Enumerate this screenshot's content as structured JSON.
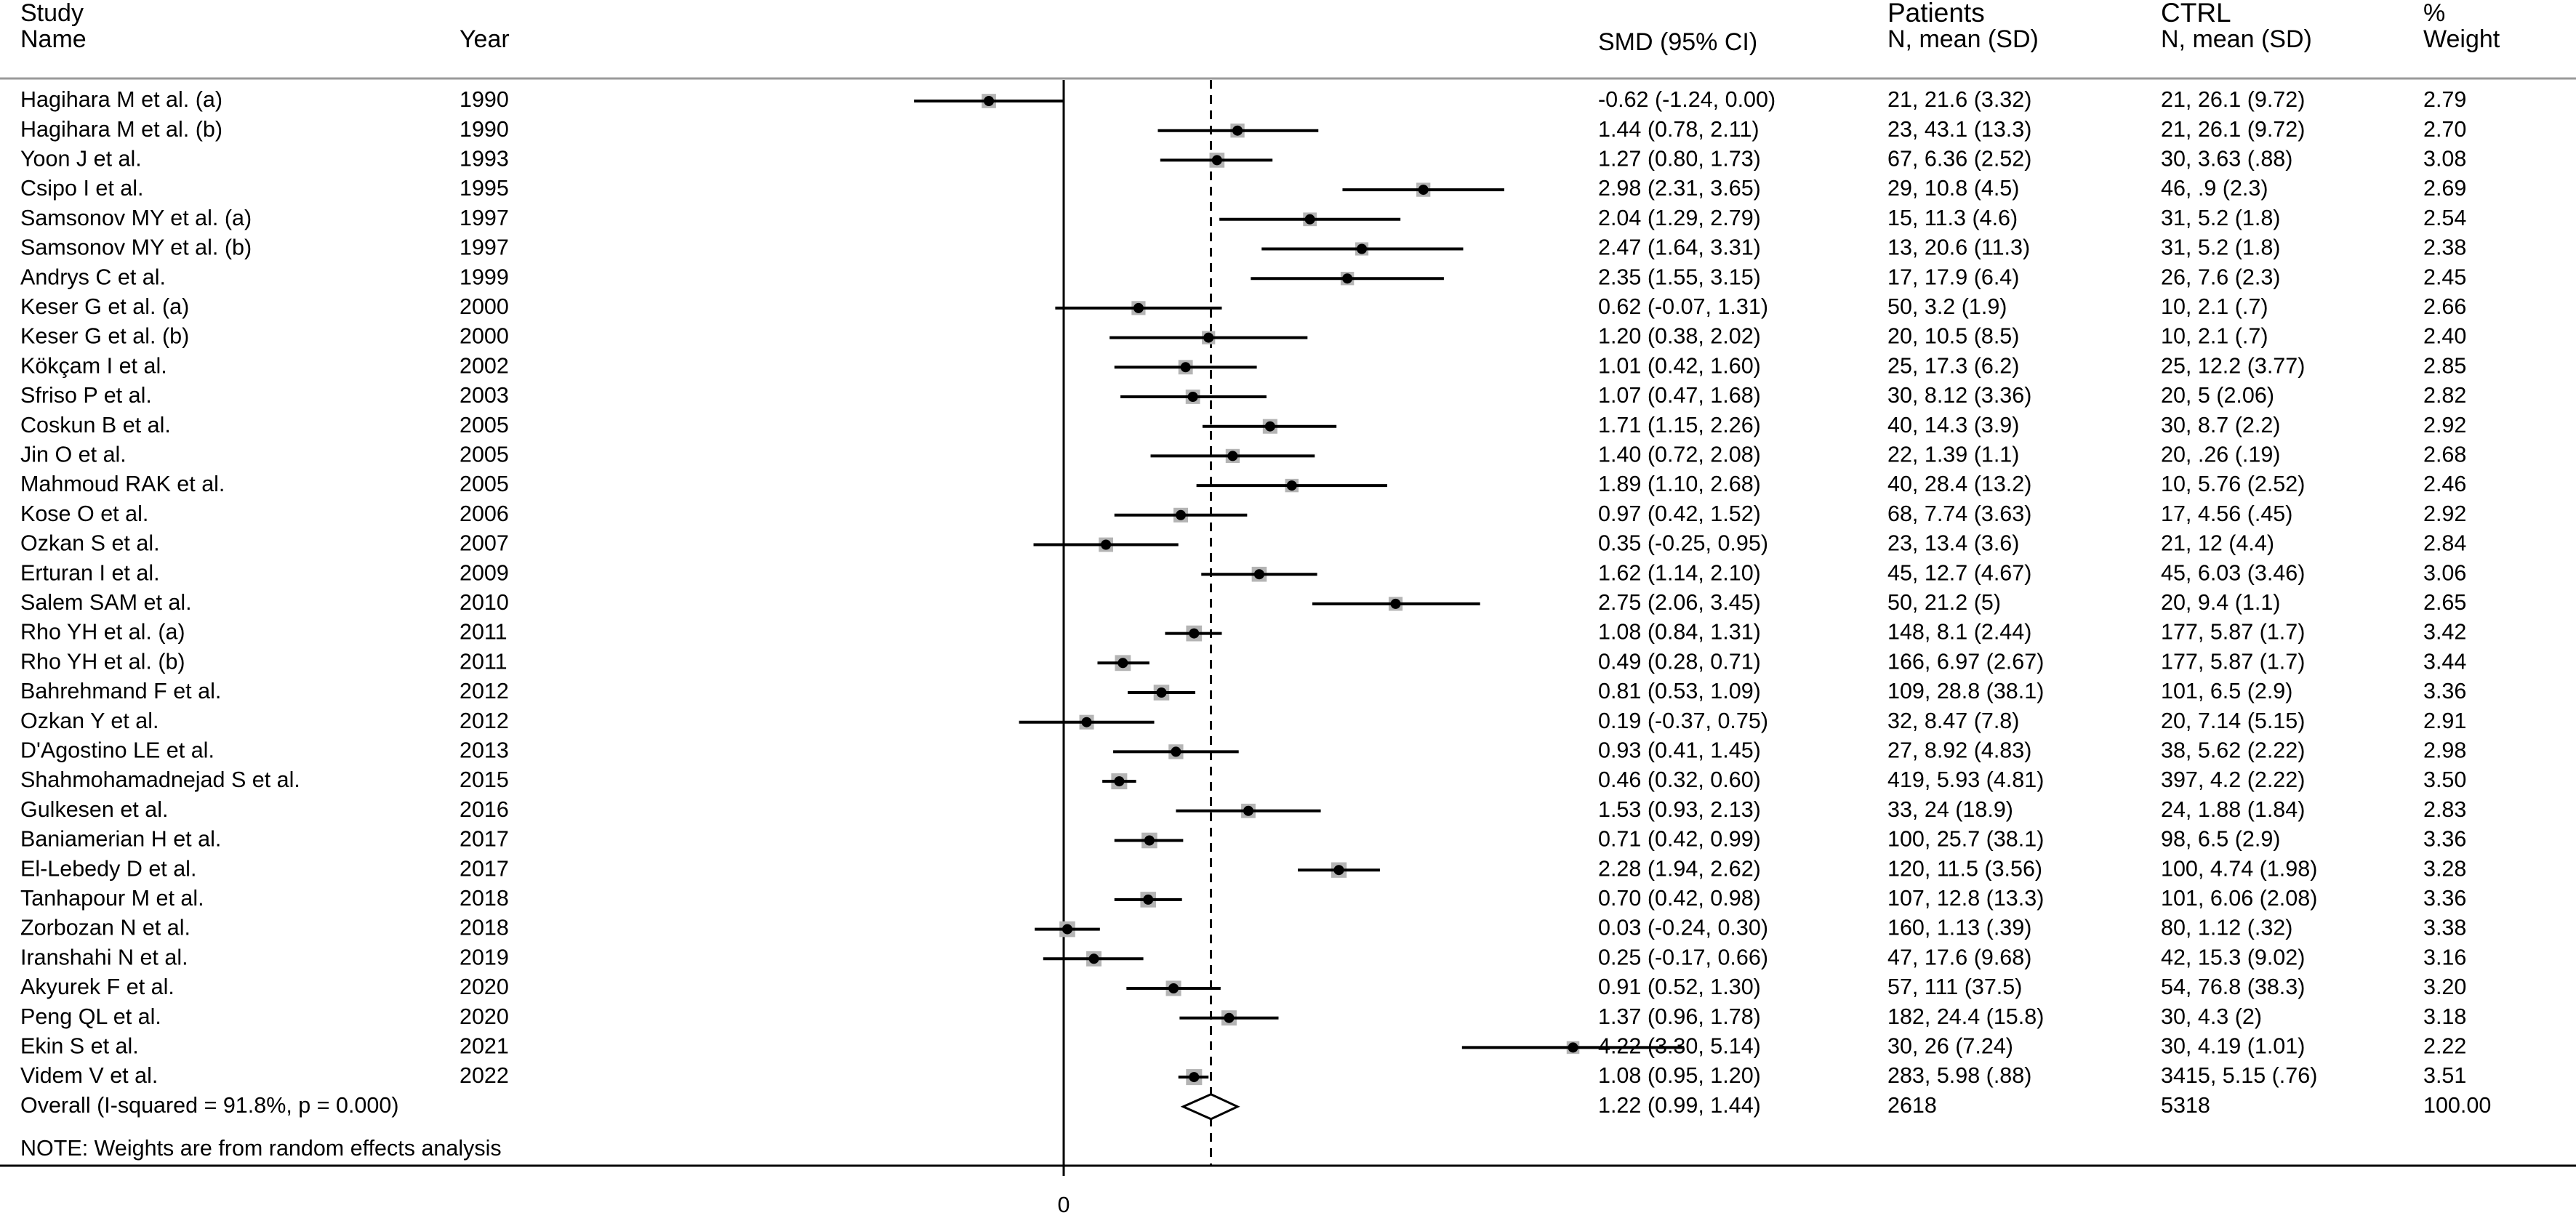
{
  "header": {
    "study_line1": "Study",
    "study_line2": "Name",
    "year": "Year",
    "smd": "SMD (95% CI)",
    "patients_line1": "Patients",
    "patients_line2": "N, mean (SD)",
    "ctrl_line1": "CTRL",
    "ctrl_line2": "N, mean (SD)",
    "weight_line1": "%",
    "weight_line2": "Weight"
  },
  "note": "NOTE: Weights are from random effects analysis",
  "chart_data": {
    "type": "forest",
    "xlabel": "",
    "x_ticks": [
      0
    ],
    "xlim": [
      -1.6,
      4.9
    ],
    "reference_line": 0,
    "overall_line": 1.22,
    "studies": [
      {
        "name": "Hagihara M et al. (a)",
        "year": "1990",
        "smd": -0.62,
        "lo": -1.24,
        "hi": 0.0,
        "ci_text": "-0.62 (-1.24, 0.00)",
        "patients": "21, 21.6 (3.32)",
        "ctrl": "21, 26.1 (9.72)",
        "weight": 2.79,
        "weight_text": "2.79"
      },
      {
        "name": "Hagihara M et al. (b)",
        "year": "1990",
        "smd": 1.44,
        "lo": 0.78,
        "hi": 2.11,
        "ci_text": "1.44 (0.78, 2.11)",
        "patients": "23, 43.1 (13.3)",
        "ctrl": "21, 26.1 (9.72)",
        "weight": 2.7,
        "weight_text": "2.70"
      },
      {
        "name": "Yoon J et al.",
        "year": "1993",
        "smd": 1.27,
        "lo": 0.8,
        "hi": 1.73,
        "ci_text": "1.27 (0.80, 1.73)",
        "patients": "67, 6.36 (2.52)",
        "ctrl": "30, 3.63 (.88)",
        "weight": 3.08,
        "weight_text": "3.08"
      },
      {
        "name": "Csipo I et al.",
        "year": "1995",
        "smd": 2.98,
        "lo": 2.31,
        "hi": 3.65,
        "ci_text": "2.98 (2.31, 3.65)",
        "patients": "29, 10.8 (4.5)",
        "ctrl": "46, .9 (2.3)",
        "weight": 2.69,
        "weight_text": "2.69"
      },
      {
        "name": "Samsonov MY et al. (a)",
        "year": "1997",
        "smd": 2.04,
        "lo": 1.29,
        "hi": 2.79,
        "ci_text": "2.04 (1.29, 2.79)",
        "patients": "15, 11.3 (4.6)",
        "ctrl": "31, 5.2 (1.8)",
        "weight": 2.54,
        "weight_text": "2.54"
      },
      {
        "name": "Samsonov MY et al. (b)",
        "year": "1997",
        "smd": 2.47,
        "lo": 1.64,
        "hi": 3.31,
        "ci_text": "2.47 (1.64, 3.31)",
        "patients": "13, 20.6 (11.3)",
        "ctrl": "31, 5.2 (1.8)",
        "weight": 2.38,
        "weight_text": "2.38"
      },
      {
        "name": "Andrys C et al.",
        "year": "1999",
        "smd": 2.35,
        "lo": 1.55,
        "hi": 3.15,
        "ci_text": "2.35 (1.55, 3.15)",
        "patients": "17, 17.9 (6.4)",
        "ctrl": "26, 7.6 (2.3)",
        "weight": 2.45,
        "weight_text": "2.45"
      },
      {
        "name": "Keser G et al. (a)",
        "year": "2000",
        "smd": 0.62,
        "lo": -0.07,
        "hi": 1.31,
        "ci_text": "0.62 (-0.07, 1.31)",
        "patients": "50, 3.2 (1.9)",
        "ctrl": "10, 2.1 (.7)",
        "weight": 2.66,
        "weight_text": "2.66"
      },
      {
        "name": "Keser G et al. (b)",
        "year": "2000",
        "smd": 1.2,
        "lo": 0.38,
        "hi": 2.02,
        "ci_text": "1.20 (0.38, 2.02)",
        "patients": "20, 10.5 (8.5)",
        "ctrl": "10, 2.1 (.7)",
        "weight": 2.4,
        "weight_text": "2.40"
      },
      {
        "name": "Kökçam I et al.",
        "year": "2002",
        "smd": 1.01,
        "lo": 0.42,
        "hi": 1.6,
        "ci_text": "1.01 (0.42, 1.60)",
        "patients": "25, 17.3 (6.2)",
        "ctrl": "25, 12.2 (3.77)",
        "weight": 2.85,
        "weight_text": "2.85"
      },
      {
        "name": "Sfriso P et al.",
        "year": "2003",
        "smd": 1.07,
        "lo": 0.47,
        "hi": 1.68,
        "ci_text": "1.07 (0.47, 1.68)",
        "patients": "30, 8.12 (3.36)",
        "ctrl": "20, 5 (2.06)",
        "weight": 2.82,
        "weight_text": "2.82"
      },
      {
        "name": "Coskun B et al.",
        "year": "2005",
        "smd": 1.71,
        "lo": 1.15,
        "hi": 2.26,
        "ci_text": "1.71 (1.15, 2.26)",
        "patients": "40, 14.3 (3.9)",
        "ctrl": "30, 8.7 (2.2)",
        "weight": 2.92,
        "weight_text": "2.92"
      },
      {
        "name": "Jin O et al.",
        "year": "2005",
        "smd": 1.4,
        "lo": 0.72,
        "hi": 2.08,
        "ci_text": "1.40 (0.72, 2.08)",
        "patients": "22, 1.39 (1.1)",
        "ctrl": "20, .26 (.19)",
        "weight": 2.68,
        "weight_text": "2.68"
      },
      {
        "name": "Mahmoud RAK et al.",
        "year": "2005",
        "smd": 1.89,
        "lo": 1.1,
        "hi": 2.68,
        "ci_text": "1.89 (1.10, 2.68)",
        "patients": "40, 28.4 (13.2)",
        "ctrl": "10, 5.76 (2.52)",
        "weight": 2.46,
        "weight_text": "2.46"
      },
      {
        "name": "Kose O et al.",
        "year": "2006",
        "smd": 0.97,
        "lo": 0.42,
        "hi": 1.52,
        "ci_text": "0.97 (0.42, 1.52)",
        "patients": "68, 7.74 (3.63)",
        "ctrl": "17, 4.56 (.45)",
        "weight": 2.92,
        "weight_text": "2.92"
      },
      {
        "name": "Ozkan  S et al.",
        "year": "2007",
        "smd": 0.35,
        "lo": -0.25,
        "hi": 0.95,
        "ci_text": "0.35 (-0.25, 0.95)",
        "patients": "23, 13.4 (3.6)",
        "ctrl": "21, 12 (4.4)",
        "weight": 2.84,
        "weight_text": "2.84"
      },
      {
        "name": "Erturan I et al.",
        "year": "2009",
        "smd": 1.62,
        "lo": 1.14,
        "hi": 2.1,
        "ci_text": "1.62 (1.14, 2.10)",
        "patients": "45, 12.7 (4.67)",
        "ctrl": "45, 6.03 (3.46)",
        "weight": 3.06,
        "weight_text": "3.06"
      },
      {
        "name": "Salem SAM et al.",
        "year": "2010",
        "smd": 2.75,
        "lo": 2.06,
        "hi": 3.45,
        "ci_text": "2.75 (2.06, 3.45)",
        "patients": "50, 21.2 (5)",
        "ctrl": "20, 9.4 (1.1)",
        "weight": 2.65,
        "weight_text": "2.65"
      },
      {
        "name": "Rho YH et al. (a)",
        "year": "2011",
        "smd": 1.08,
        "lo": 0.84,
        "hi": 1.31,
        "ci_text": "1.08 (0.84, 1.31)",
        "patients": "148, 8.1 (2.44)",
        "ctrl": "177, 5.87 (1.7)",
        "weight": 3.42,
        "weight_text": "3.42"
      },
      {
        "name": "Rho YH et al. (b)",
        "year": "2011",
        "smd": 0.49,
        "lo": 0.28,
        "hi": 0.71,
        "ci_text": "0.49 (0.28, 0.71)",
        "patients": "166, 6.97 (2.67)",
        "ctrl": "177, 5.87 (1.7)",
        "weight": 3.44,
        "weight_text": "3.44"
      },
      {
        "name": "Bahrehmand F et al.",
        "year": "2012",
        "smd": 0.81,
        "lo": 0.53,
        "hi": 1.09,
        "ci_text": "0.81 (0.53, 1.09)",
        "patients": "109, 28.8 (38.1)",
        "ctrl": "101, 6.5 (2.9)",
        "weight": 3.36,
        "weight_text": "3.36"
      },
      {
        "name": "Ozkan Y et al.",
        "year": "2012",
        "smd": 0.19,
        "lo": -0.37,
        "hi": 0.75,
        "ci_text": "0.19 (-0.37, 0.75)",
        "patients": "32, 8.47 (7.8)",
        "ctrl": "20, 7.14 (5.15)",
        "weight": 2.91,
        "weight_text": "2.91"
      },
      {
        "name": "D'Agostino LE et al.",
        "year": "2013",
        "smd": 0.93,
        "lo": 0.41,
        "hi": 1.45,
        "ci_text": "0.93 (0.41, 1.45)",
        "patients": "27, 8.92 (4.83)",
        "ctrl": "38, 5.62 (2.22)",
        "weight": 2.98,
        "weight_text": "2.98"
      },
      {
        "name": "Shahmohamadnejad S et al.",
        "year": "2015",
        "smd": 0.46,
        "lo": 0.32,
        "hi": 0.6,
        "ci_text": "0.46 (0.32, 0.60)",
        "patients": "419, 5.93 (4.81)",
        "ctrl": "397, 4.2 (2.22)",
        "weight": 3.5,
        "weight_text": "3.50"
      },
      {
        "name": "Gulkesen et al.",
        "year": "2016",
        "smd": 1.53,
        "lo": 0.93,
        "hi": 2.13,
        "ci_text": "1.53 (0.93, 2.13)",
        "patients": "33, 24 (18.9)",
        "ctrl": "24, 1.88 (1.84)",
        "weight": 2.83,
        "weight_text": "2.83"
      },
      {
        "name": "Baniamerian H et al.",
        "year": "2017",
        "smd": 0.71,
        "lo": 0.42,
        "hi": 0.99,
        "ci_text": "0.71 (0.42, 0.99)",
        "patients": "100, 25.7 (38.1)",
        "ctrl": "98, 6.5 (2.9)",
        "weight": 3.36,
        "weight_text": "3.36"
      },
      {
        "name": "El-Lebedy D et al.",
        "year": "2017",
        "smd": 2.28,
        "lo": 1.94,
        "hi": 2.62,
        "ci_text": "2.28 (1.94, 2.62)",
        "patients": "120, 11.5 (3.56)",
        "ctrl": "100, 4.74 (1.98)",
        "weight": 3.28,
        "weight_text": "3.28"
      },
      {
        "name": "Tanhapour M et al.",
        "year": "2018",
        "smd": 0.7,
        "lo": 0.42,
        "hi": 0.98,
        "ci_text": "0.70 (0.42, 0.98)",
        "patients": "107, 12.8 (13.3)",
        "ctrl": "101, 6.06 (2.08)",
        "weight": 3.36,
        "weight_text": "3.36"
      },
      {
        "name": "Zorbozan N et al.",
        "year": "2018",
        "smd": 0.03,
        "lo": -0.24,
        "hi": 0.3,
        "ci_text": "0.03 (-0.24, 0.30)",
        "patients": "160, 1.13 (.39)",
        "ctrl": "80, 1.12 (.32)",
        "weight": 3.38,
        "weight_text": "3.38"
      },
      {
        "name": "Iranshahi N et al.",
        "year": "2019",
        "smd": 0.25,
        "lo": -0.17,
        "hi": 0.66,
        "ci_text": "0.25 (-0.17, 0.66)",
        "patients": "47, 17.6 (9.68)",
        "ctrl": "42, 15.3 (9.02)",
        "weight": 3.16,
        "weight_text": "3.16"
      },
      {
        "name": "Akyurek F et al.",
        "year": "2020",
        "smd": 0.91,
        "lo": 0.52,
        "hi": 1.3,
        "ci_text": "0.91 (0.52, 1.30)",
        "patients": "57, 111 (37.5)",
        "ctrl": "54, 76.8 (38.3)",
        "weight": 3.2,
        "weight_text": "3.20"
      },
      {
        "name": "Peng QL et al.",
        "year": "2020",
        "smd": 1.37,
        "lo": 0.96,
        "hi": 1.78,
        "ci_text": "1.37 (0.96, 1.78)",
        "patients": "182, 24.4 (15.8)",
        "ctrl": "30, 4.3 (2)",
        "weight": 3.18,
        "weight_text": "3.18"
      },
      {
        "name": "Ekin S et al.",
        "year": "2021",
        "smd": 4.22,
        "lo": 3.3,
        "hi": 5.14,
        "ci_text": "4.22 (3.30, 5.14)",
        "patients": "30, 26 (7.24)",
        "ctrl": "30, 4.19 (1.01)",
        "weight": 2.22,
        "weight_text": "2.22"
      },
      {
        "name": "Videm V et al.",
        "year": "2022",
        "smd": 1.08,
        "lo": 0.95,
        "hi": 1.2,
        "ci_text": "1.08 (0.95, 1.20)",
        "patients": "283, 5.98 (.88)",
        "ctrl": "3415, 5.15 (.76)",
        "weight": 3.51,
        "weight_text": "3.51"
      }
    ],
    "overall": {
      "label": "Overall  (I-squared = 91.8%, p = 0.000)",
      "smd": 1.22,
      "lo": 0.99,
      "hi": 1.44,
      "ci_text": "1.22 (0.99, 1.44)",
      "patients": "2618",
      "ctrl": "5318",
      "weight_text": "100.00"
    }
  }
}
